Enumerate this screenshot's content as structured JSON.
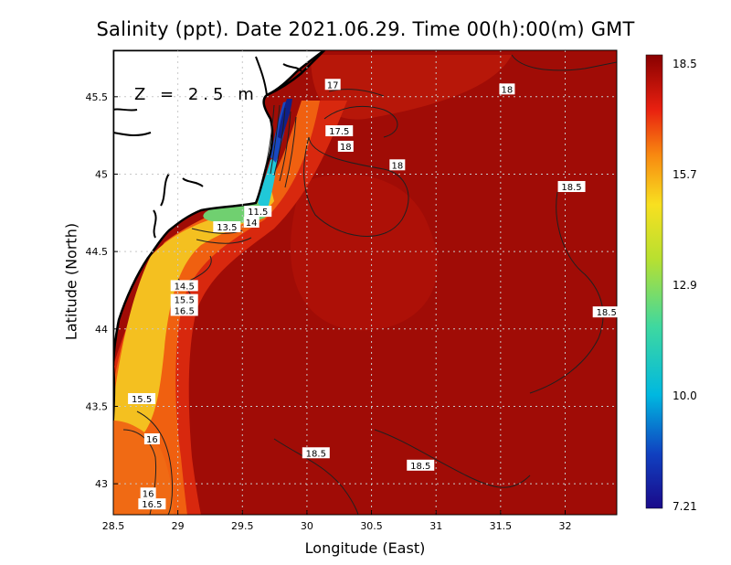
{
  "title": "Salinity (ppt). Date 2021.06.29. Time 00(h):00(m) GMT",
  "depth_label": "Z = 2.5 m",
  "xaxis": {
    "label": "Longitude (East)",
    "range": [
      28.5,
      32.4
    ],
    "ticks": [
      28.5,
      29,
      29.5,
      30,
      30.5,
      31,
      31.5,
      32
    ]
  },
  "yaxis": {
    "label": "Latitude (North)",
    "range": [
      42.8,
      45.8
    ],
    "ticks": [
      43,
      43.5,
      44,
      44.5,
      45,
      45.5
    ]
  },
  "colorbar": {
    "min": 7.21,
    "max": 18.5,
    "tick_labels": [
      "18.5",
      "15.7",
      "12.9",
      "10.0",
      "7.21"
    ]
  },
  "colors": {
    "deep": "#a00c06",
    "mid": "#d42a12",
    "orange": "#f4600e",
    "yellow": "#f0c820",
    "green": "#66d080",
    "cyan": "#00b8e0",
    "blue": "#1030a0",
    "land": "#ffffff",
    "coast": "#000000"
  },
  "contour_labels": [
    {
      "text": "17",
      "lon": 30.2,
      "lat": 45.58
    },
    {
      "text": "18",
      "lon": 31.55,
      "lat": 45.55
    },
    {
      "text": "17.5",
      "lon": 30.25,
      "lat": 45.28
    },
    {
      "text": "18",
      "lon": 30.3,
      "lat": 45.18
    },
    {
      "text": "18",
      "lon": 30.7,
      "lat": 45.06
    },
    {
      "text": "18.5",
      "lon": 32.05,
      "lat": 44.92
    },
    {
      "text": "11.5",
      "lon": 29.62,
      "lat": 44.76
    },
    {
      "text": "13.5",
      "lon": 29.38,
      "lat": 44.66
    },
    {
      "text": "14",
      "lon": 29.57,
      "lat": 44.69
    },
    {
      "text": "14.5",
      "lon": 29.05,
      "lat": 44.28
    },
    {
      "text": "15.5",
      "lon": 29.05,
      "lat": 44.19
    },
    {
      "text": "16.5",
      "lon": 29.05,
      "lat": 44.12
    },
    {
      "text": "18.5",
      "lon": 32.32,
      "lat": 44.11
    },
    {
      "text": "15.5",
      "lon": 28.72,
      "lat": 43.55
    },
    {
      "text": "16",
      "lon": 28.8,
      "lat": 43.29
    },
    {
      "text": "18.5",
      "lon": 30.07,
      "lat": 43.2
    },
    {
      "text": "18.5",
      "lon": 30.88,
      "lat": 43.12
    },
    {
      "text": "16",
      "lon": 28.77,
      "lat": 42.94
    },
    {
      "text": "16.5",
      "lon": 28.8,
      "lat": 42.87
    }
  ]
}
